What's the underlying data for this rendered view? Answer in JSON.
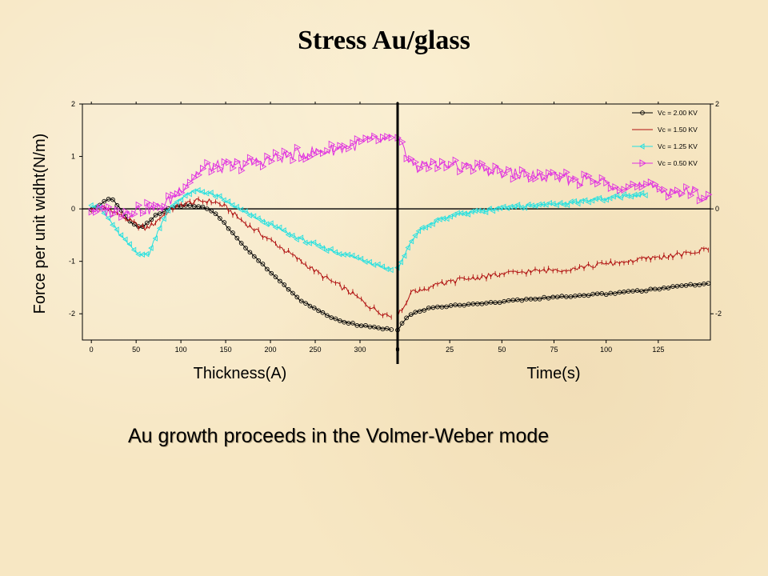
{
  "slide": {
    "title": "Stress Au/glass",
    "caption": "Au growth proceeds in the Volmer-Weber mode"
  },
  "chart_data": [
    {
      "type": "line",
      "panel": "left",
      "xlabel": "Thickness(A)",
      "ylabel": "Force per unit widht(N/m)",
      "xlim": [
        -10,
        342
      ],
      "ylim": [
        -2.5,
        2
      ],
      "xticks": [
        0,
        50,
        100,
        150,
        200,
        250,
        300
      ],
      "yticks": [
        2,
        1,
        0,
        -1,
        -2
      ],
      "grid": false,
      "zero_line": true,
      "series": [
        {
          "name": "Vc = 2.00 KV",
          "color": "#000000",
          "marker": "circle",
          "x": [
            0,
            10,
            15,
            20,
            25,
            30,
            40,
            50,
            55,
            60,
            70,
            80,
            90,
            100,
            110,
            120,
            130,
            140,
            150,
            170,
            200,
            230,
            260,
            280,
            300,
            320,
            335
          ],
          "y": [
            0,
            0.08,
            0.15,
            0.2,
            0.15,
            0.05,
            -0.2,
            -0.33,
            -0.35,
            -0.3,
            -0.15,
            -0.05,
            0.02,
            0.05,
            0.07,
            0.05,
            0,
            -0.1,
            -0.3,
            -0.7,
            -1.2,
            -1.7,
            -2.0,
            -2.15,
            -2.22,
            -2.27,
            -2.3
          ]
        },
        {
          "name": "Vc = 1.50 KV",
          "color": "#b01010",
          "marker": "tick",
          "x": [
            0,
            10,
            20,
            30,
            40,
            50,
            60,
            70,
            80,
            90,
            100,
            110,
            120,
            130,
            140,
            150,
            170,
            200,
            230,
            260,
            290,
            310,
            320,
            335
          ],
          "y": [
            0,
            0.02,
            0,
            -0.1,
            -0.2,
            -0.3,
            -0.38,
            -0.28,
            -0.12,
            0,
            0.07,
            0.12,
            0.15,
            0.15,
            0.12,
            0.03,
            -0.25,
            -0.6,
            -0.95,
            -1.3,
            -1.6,
            -1.85,
            -1.95,
            -2.05
          ]
        },
        {
          "name": "Vc = 1.25 KV",
          "color": "#22e0e0",
          "marker": "triangle-left",
          "x": [
            0,
            10,
            20,
            30,
            40,
            50,
            60,
            65,
            70,
            80,
            90,
            100,
            110,
            120,
            130,
            140,
            150,
            170,
            200,
            230,
            260,
            290,
            310,
            325,
            335
          ],
          "y": [
            0.1,
            0,
            -0.2,
            -0.45,
            -0.65,
            -0.82,
            -0.88,
            -0.85,
            -0.6,
            -0.2,
            0.05,
            0.2,
            0.3,
            0.35,
            0.3,
            0.25,
            0.15,
            -0.05,
            -0.3,
            -0.55,
            -0.75,
            -0.9,
            -1.0,
            -1.1,
            -1.15
          ]
        },
        {
          "name": "Vc = 0.50 KV",
          "color": "#e030e0",
          "marker": "triangle-right",
          "x": [
            0,
            10,
            20,
            30,
            40,
            50,
            60,
            70,
            80,
            90,
            100,
            110,
            120,
            130,
            140,
            150,
            170,
            200,
            230,
            260,
            290,
            310,
            335
          ],
          "y": [
            0,
            -0.02,
            -0.05,
            -0.05,
            -0.05,
            0,
            0,
            0,
            0.05,
            0.2,
            0.4,
            0.55,
            0.7,
            0.8,
            0.8,
            0.8,
            0.85,
            0.95,
            1.05,
            1.1,
            1.2,
            1.3,
            1.3
          ]
        }
      ]
    },
    {
      "type": "line",
      "panel": "right",
      "xlabel": "Time(s)",
      "ylabel": "",
      "xlim": [
        0,
        150
      ],
      "ylim": [
        -2.5,
        2
      ],
      "xticks": [
        0,
        25,
        50,
        75,
        100,
        125
      ],
      "yticks": [
        2,
        0,
        -2
      ],
      "grid": false,
      "zero_line": true,
      "legend_position": "top-right",
      "series": [
        {
          "name": "Vc = 2.00 KV",
          "color": "#000000",
          "marker": "circle",
          "x": [
            0,
            5,
            10,
            15,
            20,
            30,
            40,
            50,
            60,
            70,
            80,
            90,
            100,
            110,
            120,
            130,
            140,
            149
          ],
          "y": [
            -2.3,
            -2.05,
            -1.95,
            -1.9,
            -1.87,
            -1.83,
            -1.8,
            -1.77,
            -1.73,
            -1.7,
            -1.67,
            -1.65,
            -1.62,
            -1.58,
            -1.55,
            -1.5,
            -1.45,
            -1.43
          ]
        },
        {
          "name": "Vc = 1.50 KV",
          "color": "#b01010",
          "marker": "tick",
          "x": [
            0,
            3,
            6,
            10,
            15,
            20,
            30,
            40,
            50,
            60,
            70,
            80,
            90,
            100,
            110,
            120,
            130,
            140,
            149
          ],
          "y": [
            -2.05,
            -1.85,
            -1.6,
            -1.55,
            -1.5,
            -1.45,
            -1.35,
            -1.3,
            -1.25,
            -1.2,
            -1.18,
            -1.15,
            -1.1,
            -1.05,
            -1.0,
            -0.95,
            -0.9,
            -0.85,
            -0.75
          ]
        },
        {
          "name": "Vc = 1.25 KV",
          "color": "#22e0e0",
          "marker": "triangle-left",
          "x": [
            0,
            3,
            6,
            10,
            15,
            20,
            30,
            40,
            50,
            60,
            70,
            80,
            90,
            100,
            110,
            119
          ],
          "y": [
            -1.15,
            -0.9,
            -0.65,
            -0.45,
            -0.3,
            -0.2,
            -0.1,
            -0.05,
            0.02,
            0.05,
            0.08,
            0.1,
            0.15,
            0.2,
            0.25,
            0.28
          ]
        },
        {
          "name": "Vc = 0.50 KV",
          "color": "#e030e0",
          "marker": "triangle-right",
          "x": [
            0,
            3,
            6,
            10,
            20,
            30,
            40,
            50,
            60,
            70,
            80,
            90,
            100,
            110,
            120,
            130,
            140,
            149
          ],
          "y": [
            1.3,
            1.1,
            0.9,
            0.8,
            0.85,
            0.8,
            0.75,
            0.7,
            0.65,
            0.6,
            0.58,
            0.55,
            0.5,
            0.45,
            0.4,
            0.35,
            0.3,
            0.25
          ]
        }
      ]
    }
  ]
}
